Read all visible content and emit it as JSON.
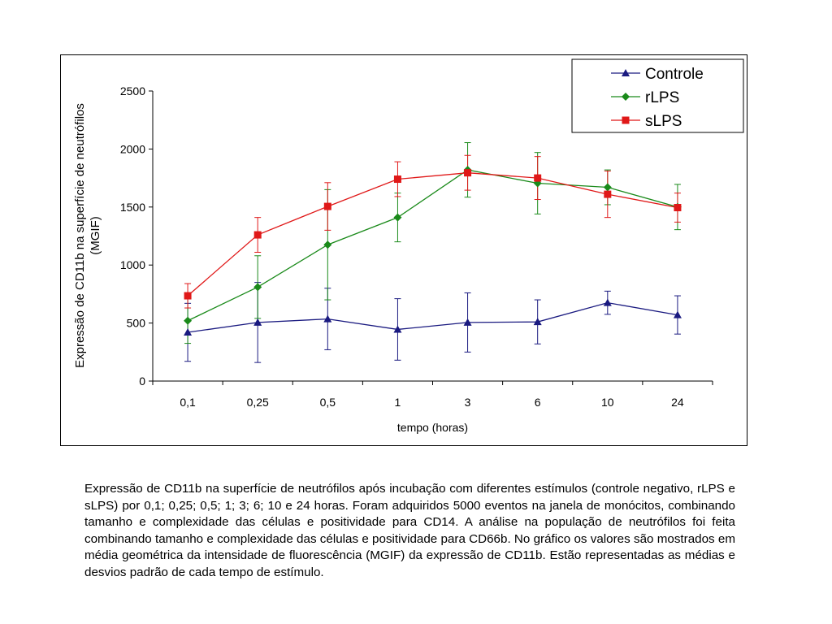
{
  "chart_data": {
    "type": "line",
    "categories": [
      "0,1",
      "0,25",
      "0,5",
      "1",
      "3",
      "6",
      "10",
      "24"
    ],
    "xlabel": "tempo (horas)",
    "ylabel": "Expressão de CD11b na superfície de neutrófilos (MGIF)",
    "ylabel_lines": [
      "Expressão de CD11b na superfície de neutrófilos",
      "(MGIF)"
    ],
    "ylim": [
      0,
      2500
    ],
    "yticks": [
      "0",
      "500",
      "1000",
      "1500",
      "2000",
      "2500"
    ],
    "grid": false,
    "legend_position": "top-right",
    "series": [
      {
        "name": "Controle",
        "color": "#1a1a80",
        "marker": "triangle",
        "values": [
          420,
          505,
          535,
          445,
          505,
          510,
          675,
          570
        ],
        "errors": [
          250,
          345,
          265,
          265,
          255,
          190,
          100,
          165
        ]
      },
      {
        "name": "rLPS",
        "color": "#1a8a1a",
        "marker": "diamond",
        "values": [
          520,
          810,
          1175,
          1410,
          1820,
          1705,
          1670,
          1500
        ],
        "errors": [
          195,
          270,
          475,
          210,
          235,
          265,
          150,
          195
        ]
      },
      {
        "name": "sLPS",
        "color": "#e01818",
        "marker": "square",
        "values": [
          735,
          1260,
          1505,
          1740,
          1795,
          1750,
          1610,
          1495
        ],
        "errors": [
          105,
          150,
          205,
          150,
          150,
          185,
          200,
          125
        ]
      }
    ]
  },
  "caption": "Expressão de CD11b na superfície de neutrófilos após incubação com diferentes estímulos (controle negativo, rLPS e sLPS) por 0,1; 0,25; 0,5; 1; 3; 6; 10 e 24 horas. Foram adquiridos 5000 eventos na janela de monócitos, combinando tamanho e complexidade das células e positividade para CD14. A análise na população de neutrófilos foi feita combinando tamanho e complexidade das células e positividade para CD66b. No gráfico os valores são mostrados em média geométrica da intensidade de fluorescência (MGIF) da expressão de CD11b. Estão representadas as médias e desvios padrão de cada tempo de estímulo."
}
